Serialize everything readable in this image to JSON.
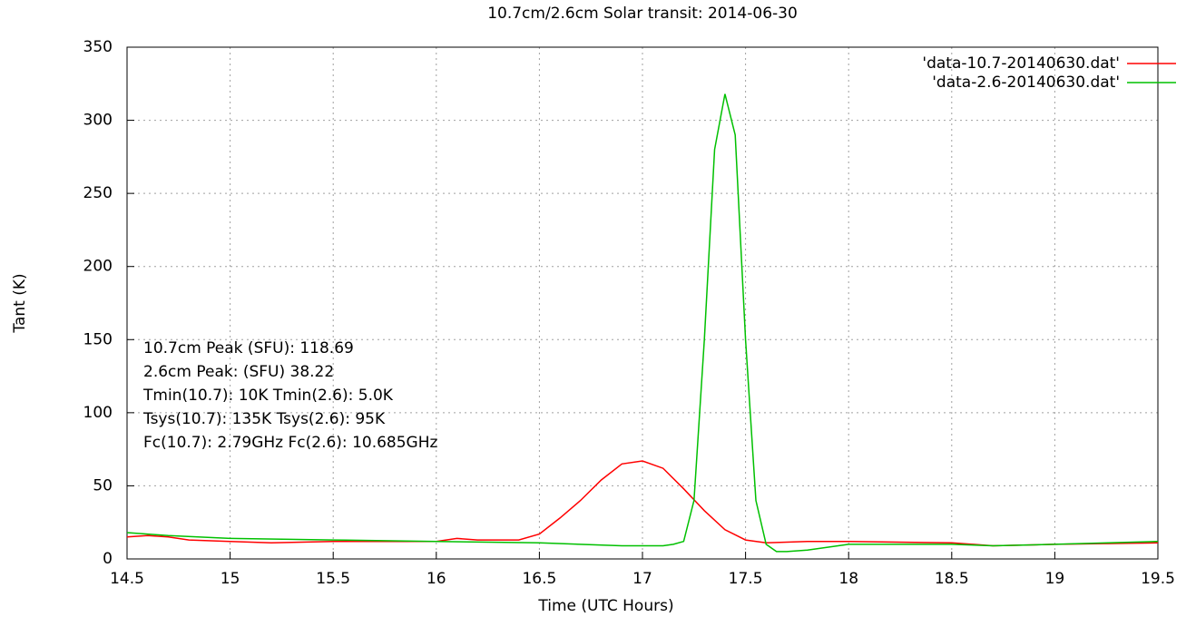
{
  "chart_data": {
    "type": "line",
    "title": "10.7cm/2.6cm Solar transit: 2014-06-30",
    "x_label": "Time (UTC Hours)",
    "y_label": "Tant (K)",
    "xlim": [
      14.5,
      19.5
    ],
    "xticks": [
      14.5,
      15,
      15.5,
      16,
      16.5,
      17,
      17.5,
      18,
      18.5,
      19,
      19.5
    ],
    "ylim": [
      0,
      350
    ],
    "yticks": [
      0,
      50,
      100,
      150,
      200,
      250,
      300,
      350
    ],
    "grid": true,
    "legend": "top-right",
    "annotations": [
      "10.7cm Peak (SFU): 118.69",
      "2.6cm Peak: (SFU)  38.22",
      "Tmin(10.7): 10K Tmin(2.6): 5.0K",
      "Tsys(10.7): 135K Tsys(2.6): 95K",
      "Fc(10.7): 2.79GHz Fc(2.6): 10.685GHz"
    ],
    "series": [
      {
        "name": "'data-10.7-20140630.dat'",
        "color": "#ff0000",
        "x": [
          14.5,
          14.6,
          14.7,
          14.8,
          15,
          15.2,
          15.5,
          16,
          16.1,
          16.2,
          16.4,
          16.5,
          16.6,
          16.7,
          16.8,
          16.9,
          17.0,
          17.1,
          17.2,
          17.3,
          17.4,
          17.5,
          17.6,
          17.8,
          18,
          18.5,
          18.7,
          19,
          19.5
        ],
        "values": [
          15,
          16,
          15,
          13,
          12,
          11,
          12,
          12,
          14,
          13,
          13,
          17,
          28,
          40,
          54,
          65,
          67,
          62,
          48,
          33,
          20,
          13,
          11,
          12,
          12,
          11,
          9,
          10,
          11
        ]
      },
      {
        "name": "'data-2.6-20140630.dat'",
        "color": "#00c000",
        "x": [
          14.5,
          14.7,
          15,
          15.5,
          16,
          16.5,
          16.9,
          17.0,
          17.1,
          17.15,
          17.2,
          17.25,
          17.3,
          17.35,
          17.4,
          17.45,
          17.5,
          17.55,
          17.6,
          17.65,
          17.7,
          17.8,
          18,
          18.5,
          18.7,
          19,
          19.5
        ],
        "values": [
          18,
          16,
          14,
          13,
          12,
          11,
          9,
          9,
          9,
          10,
          12,
          40,
          150,
          280,
          318,
          290,
          150,
          40,
          10,
          5,
          5,
          6,
          10,
          10,
          9,
          10,
          12
        ]
      }
    ]
  }
}
